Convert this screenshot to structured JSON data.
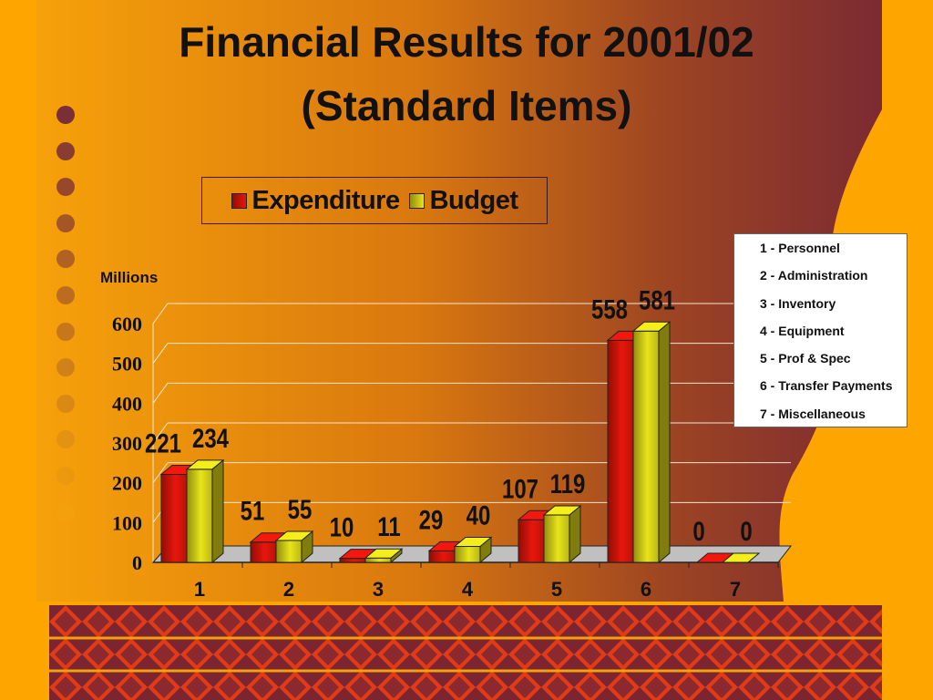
{
  "slide": {
    "title_line1": "Financial Results for 2001/02",
    "title_line2": "(Standard Items)",
    "colors": {
      "background_orange": "#FFA500",
      "gradient_dark": "#8B3030",
      "bullet_start": "#7A2E36",
      "bullet_end": "#F3A20E",
      "diamond_red": "#E03A16",
      "diamond_maroon": "#7A2530"
    }
  },
  "key": {
    "items": [
      "1 - Personnel",
      "2 - Administration",
      "3 - Inventory",
      "4 - Equipment",
      "5 - Prof & Spec",
      "6 - Transfer Payments",
      "7 - Miscellaneous"
    ]
  },
  "chart_data": {
    "type": "bar",
    "style": "3d-clustered-column",
    "title": "Financial Results for 2001/02 (Standard Items)",
    "unit_label": "Millions",
    "categories": [
      "1",
      "2",
      "3",
      "4",
      "5",
      "6",
      "7"
    ],
    "series": [
      {
        "name": "Expenditure",
        "color": "#E8160C",
        "values": [
          221,
          51,
          10,
          29,
          107,
          558,
          0
        ]
      },
      {
        "name": "Budget",
        "color": "#E8E41A",
        "values": [
          234,
          55,
          11,
          40,
          119,
          581,
          0
        ]
      }
    ],
    "data_labels": [
      [
        "221",
        "51",
        "10",
        "29",
        "107",
        "558",
        "0"
      ],
      [
        "234",
        "55",
        "11",
        "40",
        "119",
        "581",
        "0"
      ]
    ],
    "y_ticks": [
      "0",
      "100",
      "200",
      "300",
      "400",
      "500",
      "600"
    ],
    "ylim": [
      0,
      600
    ],
    "grid": true,
    "legend_position": "top"
  }
}
